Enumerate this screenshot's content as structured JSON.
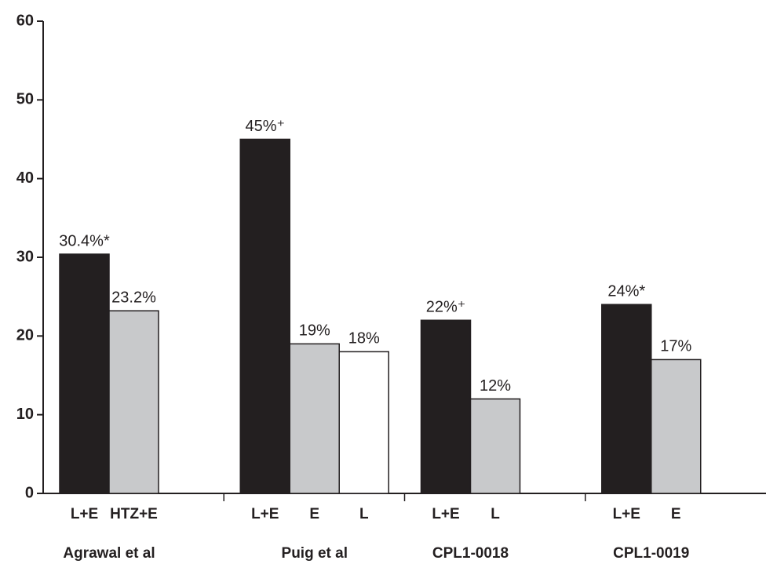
{
  "chart_data": {
    "type": "bar",
    "ylim": [
      0,
      60
    ],
    "yticks": [
      0,
      10,
      20,
      30,
      40,
      50,
      60
    ],
    "groups": [
      {
        "name": "Agrawal et al",
        "bars": [
          {
            "label": "L+E",
            "value": 30.4,
            "value_label": "30.4%*",
            "color": "#231f20"
          },
          {
            "label": "HTZ+E",
            "value": 23.2,
            "value_label": "23.2%",
            "color": "#c8c9cb"
          }
        ]
      },
      {
        "name": "Puig et al",
        "bars": [
          {
            "label": "L+E",
            "value": 45,
            "value_label": "45%⁺",
            "color": "#231f20"
          },
          {
            "label": "E",
            "value": 19,
            "value_label": "19%",
            "color": "#c8c9cb"
          },
          {
            "label": "L",
            "value": 18,
            "value_label": "18%",
            "color": "#ffffff"
          }
        ]
      },
      {
        "name": "CPL1-0018",
        "bars": [
          {
            "label": "L+E",
            "value": 22,
            "value_label": "22%⁺",
            "color": "#231f20"
          },
          {
            "label": "L",
            "value": 12,
            "value_label": "12%",
            "color": "#c8c9cb"
          }
        ]
      },
      {
        "name": "CPL1-0019",
        "bars": [
          {
            "label": "L+E",
            "value": 24,
            "value_label": "24%*",
            "color": "#231f20"
          },
          {
            "label": "E",
            "value": 17,
            "value_label": "17%",
            "color": "#c8c9cb"
          }
        ]
      }
    ]
  }
}
